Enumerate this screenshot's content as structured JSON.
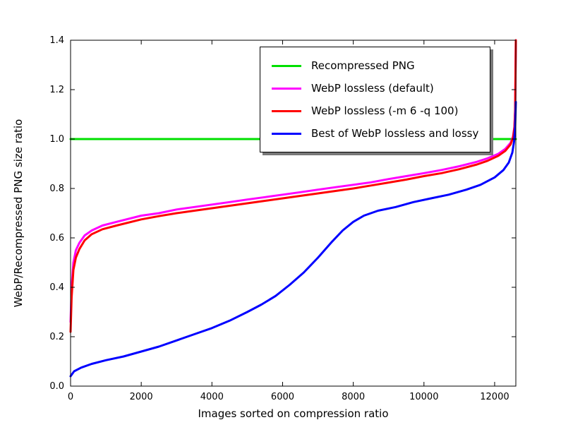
{
  "figure": {
    "background": "#ffffff"
  },
  "chart_data": {
    "type": "line",
    "title": "",
    "xlabel": "Images sorted on compression ratio",
    "ylabel": "WebP/Recompressed PNG size ratio",
    "xlim": [
      0,
      12600
    ],
    "ylim": [
      0.0,
      1.4
    ],
    "grid": false,
    "legend": {
      "position": "upper center-right",
      "shadow": true
    },
    "xticks": [
      {
        "value": 0,
        "label": "0"
      },
      {
        "value": 2000,
        "label": "2000"
      },
      {
        "value": 4000,
        "label": "4000"
      },
      {
        "value": 6000,
        "label": "6000"
      },
      {
        "value": 8000,
        "label": "8000"
      },
      {
        "value": 10000,
        "label": "10000"
      },
      {
        "value": 12000,
        "label": "12000"
      }
    ],
    "yticks": [
      {
        "value": 0.0,
        "label": "0.0"
      },
      {
        "value": 0.2,
        "label": "0.2"
      },
      {
        "value": 0.4,
        "label": "0.4"
      },
      {
        "value": 0.6,
        "label": "0.6"
      },
      {
        "value": 0.8,
        "label": "0.8"
      },
      {
        "value": 1.0,
        "label": "1.0"
      },
      {
        "value": 1.2,
        "label": "1.2"
      },
      {
        "value": 1.4,
        "label": "1.4"
      }
    ],
    "series": [
      {
        "name": "Recompressed PNG",
        "color": "#00e000",
        "points": [
          [
            0,
            1.0
          ],
          [
            12600,
            1.0
          ]
        ]
      },
      {
        "name": "WebP lossless (default)",
        "color": "#ff00ff",
        "points": [
          [
            0,
            0.26
          ],
          [
            30,
            0.4
          ],
          [
            80,
            0.5
          ],
          [
            150,
            0.55
          ],
          [
            250,
            0.58
          ],
          [
            400,
            0.61
          ],
          [
            600,
            0.63
          ],
          [
            900,
            0.65
          ],
          [
            1300,
            0.665
          ],
          [
            2000,
            0.69
          ],
          [
            2500,
            0.7
          ],
          [
            3000,
            0.715
          ],
          [
            3500,
            0.725
          ],
          [
            4000,
            0.735
          ],
          [
            4500,
            0.745
          ],
          [
            5000,
            0.755
          ],
          [
            5500,
            0.765
          ],
          [
            6000,
            0.775
          ],
          [
            6500,
            0.785
          ],
          [
            7000,
            0.795
          ],
          [
            7500,
            0.805
          ],
          [
            8000,
            0.815
          ],
          [
            8500,
            0.825
          ],
          [
            9000,
            0.838
          ],
          [
            9500,
            0.85
          ],
          [
            10000,
            0.862
          ],
          [
            10500,
            0.875
          ],
          [
            11000,
            0.89
          ],
          [
            11500,
            0.908
          ],
          [
            11800,
            0.922
          ],
          [
            12100,
            0.94
          ],
          [
            12300,
            0.96
          ],
          [
            12450,
            0.985
          ],
          [
            12520,
            1.01
          ],
          [
            12560,
            1.05
          ],
          [
            12580,
            1.12
          ],
          [
            12600,
            1.4
          ]
        ]
      },
      {
        "name": "WebP lossless (-m 6 -q 100)",
        "color": "#ff0000",
        "points": [
          [
            0,
            0.22
          ],
          [
            30,
            0.36
          ],
          [
            80,
            0.47
          ],
          [
            150,
            0.52
          ],
          [
            250,
            0.555
          ],
          [
            400,
            0.59
          ],
          [
            600,
            0.615
          ],
          [
            900,
            0.635
          ],
          [
            1300,
            0.65
          ],
          [
            2000,
            0.675
          ],
          [
            2500,
            0.688
          ],
          [
            3000,
            0.7
          ],
          [
            3500,
            0.71
          ],
          [
            4000,
            0.72
          ],
          [
            4500,
            0.73
          ],
          [
            5000,
            0.74
          ],
          [
            5500,
            0.75
          ],
          [
            6000,
            0.76
          ],
          [
            6500,
            0.77
          ],
          [
            7000,
            0.78
          ],
          [
            7500,
            0.79
          ],
          [
            8000,
            0.8
          ],
          [
            8500,
            0.812
          ],
          [
            9000,
            0.824
          ],
          [
            9500,
            0.836
          ],
          [
            10000,
            0.85
          ],
          [
            10500,
            0.862
          ],
          [
            11000,
            0.878
          ],
          [
            11500,
            0.897
          ],
          [
            11800,
            0.912
          ],
          [
            12100,
            0.932
          ],
          [
            12300,
            0.952
          ],
          [
            12450,
            0.978
          ],
          [
            12520,
            1.005
          ],
          [
            12560,
            1.045
          ],
          [
            12580,
            1.11
          ],
          [
            12600,
            1.4
          ]
        ]
      },
      {
        "name": "Best of WebP lossless and lossy",
        "color": "#0000ff",
        "points": [
          [
            0,
            0.04
          ],
          [
            100,
            0.06
          ],
          [
            300,
            0.075
          ],
          [
            600,
            0.09
          ],
          [
            1000,
            0.105
          ],
          [
            1500,
            0.12
          ],
          [
            2000,
            0.14
          ],
          [
            2500,
            0.16
          ],
          [
            3000,
            0.185
          ],
          [
            3500,
            0.21
          ],
          [
            4000,
            0.235
          ],
          [
            4500,
            0.265
          ],
          [
            5000,
            0.3
          ],
          [
            5400,
            0.33
          ],
          [
            5800,
            0.365
          ],
          [
            6200,
            0.41
          ],
          [
            6600,
            0.46
          ],
          [
            7000,
            0.52
          ],
          [
            7400,
            0.585
          ],
          [
            7700,
            0.63
          ],
          [
            8000,
            0.665
          ],
          [
            8300,
            0.69
          ],
          [
            8700,
            0.71
          ],
          [
            9200,
            0.725
          ],
          [
            9700,
            0.745
          ],
          [
            10200,
            0.76
          ],
          [
            10700,
            0.775
          ],
          [
            11200,
            0.795
          ],
          [
            11600,
            0.815
          ],
          [
            12000,
            0.845
          ],
          [
            12250,
            0.875
          ],
          [
            12400,
            0.905
          ],
          [
            12500,
            0.945
          ],
          [
            12550,
            0.99
          ],
          [
            12580,
            1.05
          ],
          [
            12600,
            1.15
          ]
        ]
      }
    ]
  }
}
